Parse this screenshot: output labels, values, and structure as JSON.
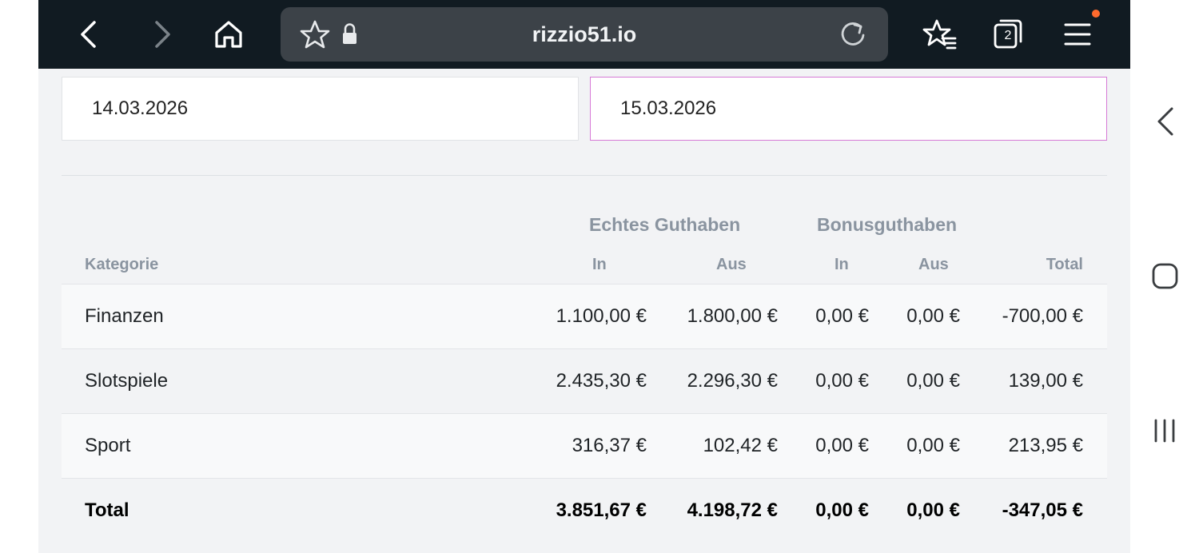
{
  "browser": {
    "url": "rizzio51.io",
    "tab_count": "2",
    "icons": [
      "back-icon",
      "forward-icon",
      "home-icon",
      "bookmark-star-icon",
      "lock-icon",
      "reload-icon",
      "bookmarks-list-icon",
      "tabs-icon",
      "menu-icon"
    ],
    "notification_color": "#ff6a2d"
  },
  "filters": {
    "date_from": "14.03.2026",
    "date_to": "15.03.2026",
    "active_border_color": "#d67ad6"
  },
  "table": {
    "group_headers": {
      "real_balance": "Echtes Guthaben",
      "bonus_balance": "Bonusguthaben"
    },
    "columns": {
      "category": "Kategorie",
      "real_in": "In",
      "real_out": "Aus",
      "bonus_in": "In",
      "bonus_out": "Aus",
      "total": "Total"
    },
    "rows": [
      {
        "category": "Finanzen",
        "real_in": "1.100,00 €",
        "real_out": "1.800,00 €",
        "bonus_in": "0,00 €",
        "bonus_out": "0,00 €",
        "total": "-700,00 €"
      },
      {
        "category": "Slotspiele",
        "real_in": "2.435,30 €",
        "real_out": "2.296,30 €",
        "bonus_in": "0,00 €",
        "bonus_out": "0,00 €",
        "total": "139,00 €"
      },
      {
        "category": "Sport",
        "real_in": "316,37 €",
        "real_out": "102,42 €",
        "bonus_in": "0,00 €",
        "bonus_out": "0,00 €",
        "total": "213,95 €"
      }
    ],
    "totals": {
      "category": "Total",
      "real_in": "3.851,67 €",
      "real_out": "4.198,72 €",
      "bonus_in": "0,00 €",
      "bonus_out": "0,00 €",
      "total": "-347,05 €"
    }
  },
  "system_nav": {
    "icons": [
      "nav-back-icon",
      "nav-home-icon",
      "nav-recents-icon"
    ]
  }
}
